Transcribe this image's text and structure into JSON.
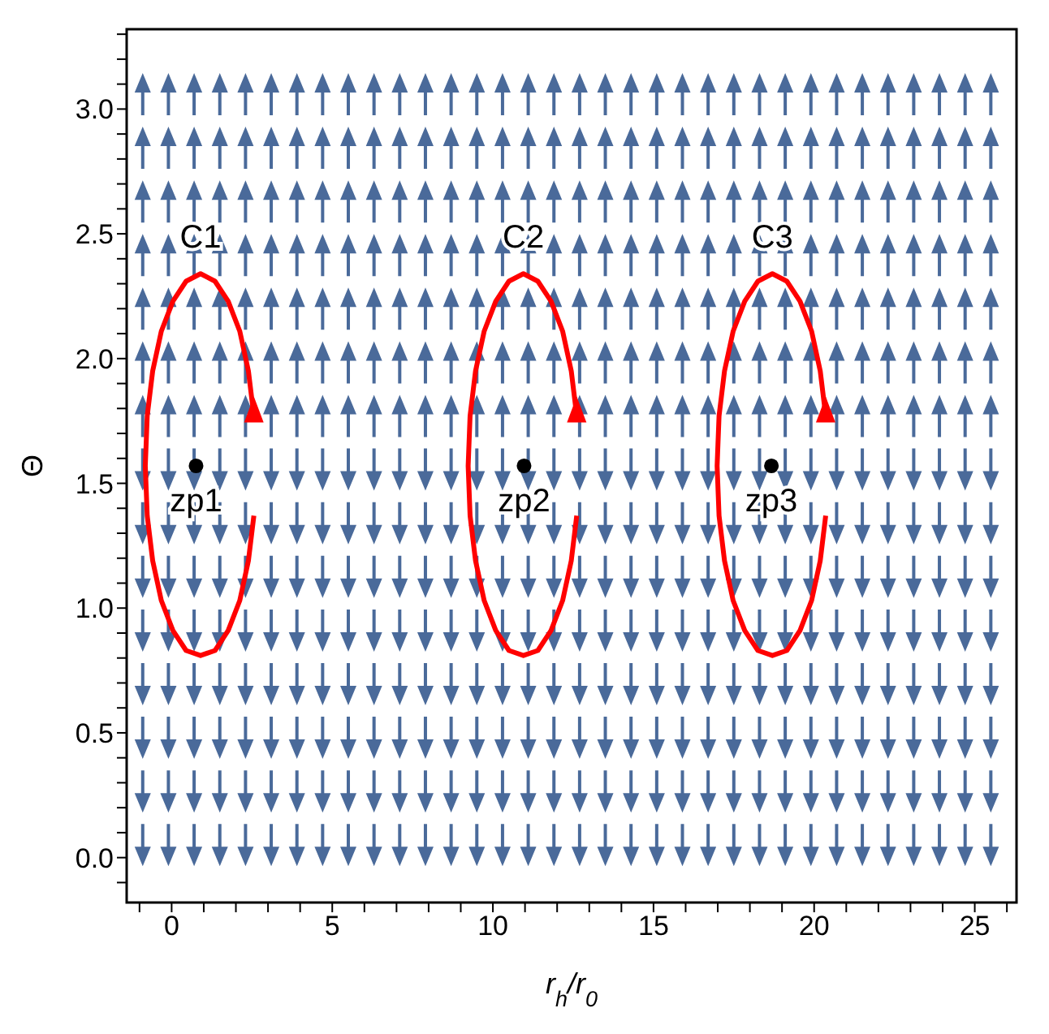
{
  "chart_data": {
    "type": "line",
    "xlabel": "r$_{h}$/r$_{0}$",
    "ylabel": "Θ",
    "xlim": [
      -1.4,
      26.3
    ],
    "ylim": [
      -0.18,
      3.32
    ],
    "xticks": [
      0,
      5,
      10,
      15,
      20,
      25,
      {
        "value": -1,
        "label": null
      },
      {
        "value": 1,
        "label": null
      },
      {
        "value": 2,
        "label": null
      },
      {
        "value": 3,
        "label": null
      },
      {
        "value": 4,
        "label": null
      },
      {
        "value": 6,
        "label": null
      },
      {
        "value": 7,
        "label": null
      },
      {
        "value": 8,
        "label": null
      },
      {
        "value": 9,
        "label": null
      },
      {
        "value": 11,
        "label": null
      },
      {
        "value": 12,
        "label": null
      },
      {
        "value": 13,
        "label": null
      },
      {
        "value": 14,
        "label": null
      },
      {
        "value": 16,
        "label": null
      },
      {
        "value": 17,
        "label": null
      },
      {
        "value": 18,
        "label": null
      },
      {
        "value": 19,
        "label": null
      },
      {
        "value": 21,
        "label": null
      },
      {
        "value": 22,
        "label": null
      },
      {
        "value": 23,
        "label": null
      },
      {
        "value": 24,
        "label": null
      },
      {
        "value": 26,
        "label": null
      }
    ],
    "yticks": [
      {
        "value": 0,
        "label": "0.0"
      },
      {
        "value": 0.5,
        "label": "0.5"
      },
      {
        "value": 1,
        "label": "1.0"
      },
      {
        "value": 1.5,
        "label": "1.5"
      },
      {
        "value": 2,
        "label": "2.0"
      },
      {
        "value": 2.5,
        "label": "2.5"
      },
      {
        "value": 3,
        "label": "3.0"
      },
      {
        "value": -0.1,
        "label": null
      },
      {
        "value": 0.1,
        "label": null
      },
      {
        "value": 0.2,
        "label": null
      },
      {
        "value": 0.3,
        "label": null
      },
      {
        "value": 0.4,
        "label": null
      },
      {
        "value": 0.6,
        "label": null
      },
      {
        "value": 0.7,
        "label": null
      },
      {
        "value": 0.8,
        "label": null
      },
      {
        "value": 0.9,
        "label": null
      },
      {
        "value": 1.1,
        "label": null
      },
      {
        "value": 1.2,
        "label": null
      },
      {
        "value": 1.3,
        "label": null
      },
      {
        "value": 1.4,
        "label": null
      },
      {
        "value": 1.6,
        "label": null
      },
      {
        "value": 1.7,
        "label": null
      },
      {
        "value": 1.8,
        "label": null
      },
      {
        "value": 1.9,
        "label": null
      },
      {
        "value": 2.1,
        "label": null
      },
      {
        "value": 2.2,
        "label": null
      },
      {
        "value": 2.3,
        "label": null
      },
      {
        "value": 2.4,
        "label": null
      },
      {
        "value": 2.6,
        "label": null
      },
      {
        "value": 2.7,
        "label": null
      },
      {
        "value": 2.8,
        "label": null
      },
      {
        "value": 2.9,
        "label": null
      },
      {
        "value": 3.1,
        "label": null
      },
      {
        "value": 3.2,
        "label": null
      },
      {
        "value": 3.3,
        "label": null
      }
    ],
    "grid": false,
    "legend": false,
    "marker": "none",
    "line_style": "solid",
    "series": [
      {
        "color": "#ff0000",
        "x": [
          2.56,
          2.39,
          2.12,
          1.76,
          1.35,
          0.9,
          0.45,
          0.04,
          -0.32,
          -0.59,
          -0.76,
          -0.82,
          -0.76,
          -0.59,
          -0.32,
          0.04,
          0.45,
          0.9,
          1.35,
          1.76,
          2.12,
          2.39,
          2.56
        ],
        "values": [
          1.77,
          1.95,
          2.11,
          2.23,
          2.31,
          2.34,
          2.31,
          2.23,
          2.11,
          1.95,
          1.77,
          1.57,
          1.37,
          1.19,
          1.03,
          0.91,
          0.83,
          0.81,
          0.83,
          0.91,
          1.03,
          1.19,
          1.37
        ]
      },
      {
        "color": "#ff0000",
        "x": [
          12.61,
          12.44,
          12.17,
          11.81,
          11.4,
          10.95,
          10.5,
          10.09,
          9.73,
          9.46,
          9.29,
          9.23,
          9.29,
          9.46,
          9.73,
          10.09,
          10.5,
          10.95,
          11.4,
          11.81,
          12.17,
          12.44,
          12.61
        ],
        "values": [
          1.77,
          1.95,
          2.11,
          2.23,
          2.31,
          2.34,
          2.31,
          2.23,
          2.11,
          1.95,
          1.77,
          1.57,
          1.37,
          1.19,
          1.03,
          0.91,
          0.83,
          0.81,
          0.83,
          0.91,
          1.03,
          1.19,
          1.37
        ]
      },
      {
        "color": "#ff0000",
        "x": [
          20.36,
          20.19,
          19.92,
          19.56,
          19.15,
          18.7,
          18.25,
          17.84,
          17.48,
          17.21,
          17.04,
          16.98,
          17.04,
          17.21,
          17.48,
          17.84,
          18.25,
          18.7,
          19.15,
          19.56,
          19.92,
          20.19,
          20.36
        ],
        "values": [
          1.77,
          1.95,
          2.11,
          2.23,
          2.31,
          2.34,
          2.31,
          2.23,
          2.11,
          1.95,
          1.77,
          1.57,
          1.37,
          1.19,
          1.03,
          0.91,
          0.83,
          0.81,
          0.83,
          0.91,
          1.03,
          1.19,
          1.37
        ]
      },
      {
        "type": "scatter",
        "color": "#000000",
        "marker": "circle",
        "x": [
          0.76,
          10.97,
          18.67
        ],
        "values": [
          1.57,
          1.57,
          1.57
        ]
      }
    ],
    "annotations": [
      {
        "text": "C1",
        "x": 0.9,
        "y": 2.34
      },
      {
        "text": "C2",
        "x": 10.95,
        "y": 2.34
      },
      {
        "text": "C3",
        "x": 18.7,
        "y": 2.34
      },
      {
        "text": "zp1",
        "x": 0.76,
        "y": 1.57
      },
      {
        "text": "zp2",
        "x": 10.97,
        "y": 1.57
      },
      {
        "text": "zp3",
        "x": 18.67,
        "y": 1.57
      }
    ]
  }
}
